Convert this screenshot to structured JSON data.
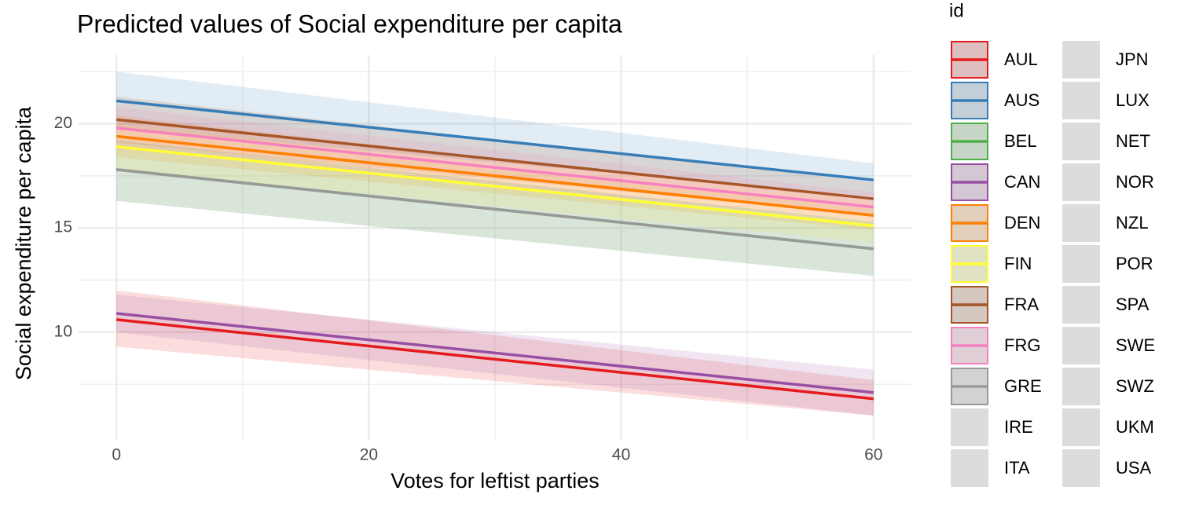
{
  "chart_data": {
    "type": "line",
    "title": "Predicted values of Social expenditure per capita",
    "x_label": "Votes for leftist parties",
    "y_label": "Social expenditure per capita",
    "legend_title": "id",
    "x": [
      0,
      60
    ],
    "xlim": [
      -3,
      63
    ],
    "xticks": [
      0,
      20,
      40,
      60
    ],
    "xminor_ticks": [
      10,
      30,
      50
    ],
    "ylim": [
      4.83,
      23.3
    ],
    "yticks": [
      10,
      15,
      20
    ],
    "yminor_ticks": [
      7.5,
      12.5,
      17.5,
      22.5
    ],
    "grid": true,
    "legend": "right",
    "series": [
      {
        "name": "AUL",
        "color": "#e41a1c",
        "values": [
          10.6,
          6.8
        ],
        "lower": [
          9.3,
          6.0
        ],
        "upper": [
          12.0,
          7.7
        ]
      },
      {
        "name": "AUS",
        "color": "#377eb8",
        "values": [
          21.1,
          17.3
        ],
        "lower": [
          19.8,
          16.5
        ],
        "upper": [
          22.5,
          18.1
        ]
      },
      {
        "name": "BEL",
        "color": "#4daf4a",
        "values": [
          17.8,
          14.0
        ],
        "lower": [
          16.3,
          12.7
        ],
        "upper": [
          19.2,
          15.3
        ]
      },
      {
        "name": "CAN",
        "color": "#984ea3",
        "values": [
          10.9,
          7.1
        ],
        "lower": [
          10.0,
          6.0
        ],
        "upper": [
          11.8,
          8.2
        ]
      },
      {
        "name": "DEN",
        "color": "#ff7f00",
        "values": [
          19.4,
          15.6
        ],
        "lower": [
          18.4,
          14.9
        ],
        "upper": [
          20.4,
          16.3
        ]
      },
      {
        "name": "FIN",
        "color": "#ffff33",
        "values": [
          18.9,
          15.1
        ],
        "lower": [
          17.8,
          14.3
        ],
        "upper": [
          20.0,
          15.9
        ]
      },
      {
        "name": "FRA",
        "color": "#a65628",
        "values": [
          20.2,
          16.4
        ],
        "lower": [
          19.1,
          15.6
        ],
        "upper": [
          21.3,
          17.2
        ]
      },
      {
        "name": "FRG",
        "color": "#f781bf",
        "values": [
          19.8,
          16.0
        ],
        "lower": [
          18.8,
          15.3
        ],
        "upper": [
          20.8,
          16.7
        ]
      },
      {
        "name": "GRE",
        "color": "#999999",
        "values": [
          17.8,
          14.0
        ],
        "lower": [
          16.3,
          12.7
        ],
        "upper": [
          19.2,
          15.3
        ]
      },
      {
        "name": "IRE",
        "values": [
          null,
          null
        ],
        "lower": [
          null,
          null
        ],
        "upper": [
          null,
          null
        ]
      },
      {
        "name": "ITA",
        "values": [
          null,
          null
        ],
        "lower": [
          null,
          null
        ],
        "upper": [
          null,
          null
        ]
      },
      {
        "name": "JPN",
        "values": [
          null,
          null
        ],
        "lower": [
          null,
          null
        ],
        "upper": [
          null,
          null
        ]
      },
      {
        "name": "LUX",
        "values": [
          null,
          null
        ],
        "lower": [
          null,
          null
        ],
        "upper": [
          null,
          null
        ]
      },
      {
        "name": "NET",
        "values": [
          null,
          null
        ],
        "lower": [
          null,
          null
        ],
        "upper": [
          null,
          null
        ]
      },
      {
        "name": "NOR",
        "values": [
          null,
          null
        ],
        "lower": [
          null,
          null
        ],
        "upper": [
          null,
          null
        ]
      },
      {
        "name": "NZL",
        "values": [
          null,
          null
        ],
        "lower": [
          null,
          null
        ],
        "upper": [
          null,
          null
        ]
      },
      {
        "name": "POR",
        "values": [
          null,
          null
        ],
        "lower": [
          null,
          null
        ],
        "upper": [
          null,
          null
        ]
      },
      {
        "name": "SPA",
        "values": [
          null,
          null
        ],
        "lower": [
          null,
          null
        ],
        "upper": [
          null,
          null
        ]
      },
      {
        "name": "SWE",
        "values": [
          null,
          null
        ],
        "lower": [
          null,
          null
        ],
        "upper": [
          null,
          null
        ]
      },
      {
        "name": "SWZ",
        "values": [
          null,
          null
        ],
        "lower": [
          null,
          null
        ],
        "upper": [
          null,
          null
        ]
      },
      {
        "name": "UKM",
        "values": [
          null,
          null
        ],
        "lower": [
          null,
          null
        ],
        "upper": [
          null,
          null
        ]
      },
      {
        "name": "USA",
        "values": [
          null,
          null
        ],
        "lower": [
          null,
          null
        ],
        "upper": [
          null,
          null
        ]
      }
    ]
  }
}
